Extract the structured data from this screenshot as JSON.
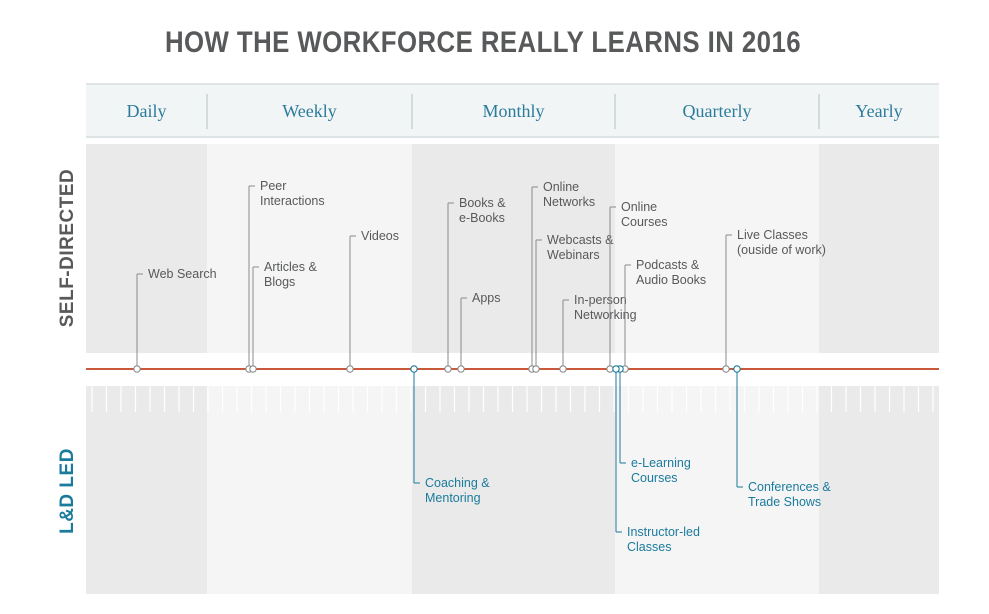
{
  "title": "HOW THE WORKFORCE REALLY LEARNS IN 2016",
  "rows": {
    "self_directed": "SELF-DIRECTED",
    "ld_led": "L&D LED"
  },
  "colors": {
    "timeline": "#c85a3b",
    "self_text": "#58595b",
    "ld_text": "#1b7b9c",
    "band_gray": "#eeeeee",
    "band_white": "#f7f7f7",
    "header_text": "#2b7c9b"
  },
  "periods": [
    "Daily",
    "Weekly",
    "Monthly",
    "Quarterly",
    "Yearly"
  ],
  "self_directed_items": [
    {
      "id": "web-search",
      "lines": [
        "Web Search"
      ]
    },
    {
      "id": "peer-interactions",
      "lines": [
        "Peer",
        "Interactions"
      ]
    },
    {
      "id": "articles-blogs",
      "lines": [
        "Articles &",
        "Blogs"
      ]
    },
    {
      "id": "videos",
      "lines": [
        "Videos"
      ]
    },
    {
      "id": "books-ebooks",
      "lines": [
        "Books &",
        "e-Books"
      ]
    },
    {
      "id": "apps",
      "lines": [
        "Apps"
      ]
    },
    {
      "id": "online-networks",
      "lines": [
        "Online",
        "Networks"
      ]
    },
    {
      "id": "webcasts-webinars",
      "lines": [
        "Webcasts &",
        "Webinars"
      ]
    },
    {
      "id": "in-person-networking",
      "lines": [
        "In-person",
        "Networking"
      ]
    },
    {
      "id": "online-courses",
      "lines": [
        "Online",
        "Courses"
      ]
    },
    {
      "id": "podcasts-audio-books",
      "lines": [
        "Podcasts &",
        "Audio Books"
      ]
    },
    {
      "id": "live-classes",
      "lines": [
        "Live Classes",
        "(ouside of work)"
      ]
    }
  ],
  "ld_led_items": [
    {
      "id": "coaching-mentoring",
      "lines": [
        "Coaching &",
        "Mentoring"
      ]
    },
    {
      "id": "e-learning-courses",
      "lines": [
        "e-Learning",
        "Courses"
      ]
    },
    {
      "id": "instructor-led-classes",
      "lines": [
        "Instructor-led",
        "Classes"
      ]
    },
    {
      "id": "conferences-trade-shows",
      "lines": [
        "Conferences &",
        "Trade Shows"
      ]
    }
  ]
}
